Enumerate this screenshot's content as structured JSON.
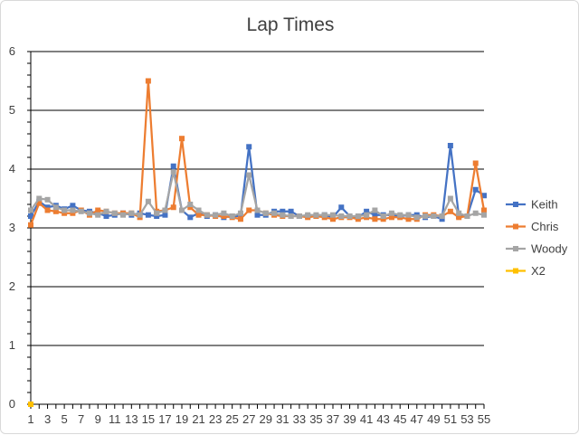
{
  "chart_data": {
    "type": "line",
    "title": "Lap Times",
    "xlabel": "",
    "ylabel": "",
    "ylim": [
      0,
      6
    ],
    "y_ticks": [
      0,
      1,
      2,
      3,
      4,
      5,
      6
    ],
    "x_range": [
      1,
      55
    ],
    "x_tick_labels": [
      1,
      3,
      5,
      7,
      9,
      11,
      13,
      15,
      17,
      19,
      21,
      23,
      25,
      27,
      29,
      31,
      33,
      35,
      37,
      39,
      41,
      43,
      45,
      47,
      49,
      51,
      53,
      55
    ],
    "grid": "horizontal major gridlines",
    "legend_position": "right",
    "series": [
      {
        "name": "Keith",
        "color": "#4472C4",
        "x": [
          1,
          2,
          3,
          4,
          5,
          6,
          7,
          8,
          9,
          10,
          11,
          12,
          13,
          14,
          15,
          16,
          17,
          18,
          19,
          20,
          21,
          22,
          23,
          24,
          25,
          26,
          27,
          28,
          29,
          30,
          31,
          32,
          33,
          34,
          35,
          36,
          37,
          38,
          39,
          40,
          41,
          42,
          43,
          44,
          45,
          46,
          47,
          48,
          49,
          50,
          51,
          52,
          53,
          54,
          55
        ],
        "values": [
          3.2,
          3.45,
          3.35,
          3.38,
          3.32,
          3.38,
          3.3,
          3.28,
          3.25,
          3.2,
          3.22,
          3.25,
          3.22,
          3.25,
          3.22,
          3.2,
          3.22,
          4.05,
          3.3,
          3.18,
          3.25,
          3.2,
          3.22,
          3.18,
          3.2,
          3.2,
          4.38,
          3.22,
          3.22,
          3.28,
          3.28,
          3.28,
          3.2,
          3.2,
          3.2,
          3.22,
          3.18,
          3.35,
          3.2,
          3.18,
          3.28,
          3.22,
          3.22,
          3.22,
          3.2,
          3.22,
          3.22,
          3.18,
          3.2,
          3.15,
          4.4,
          3.2,
          3.2,
          3.65,
          3.55
        ]
      },
      {
        "name": "Chris",
        "color": "#ED7D31",
        "x": [
          1,
          2,
          3,
          4,
          5,
          6,
          7,
          8,
          9,
          10,
          11,
          12,
          13,
          14,
          15,
          16,
          17,
          18,
          19,
          20,
          21,
          22,
          23,
          24,
          25,
          26,
          27,
          28,
          29,
          30,
          31,
          32,
          33,
          34,
          35,
          36,
          37,
          38,
          39,
          40,
          41,
          42,
          43,
          44,
          45,
          46,
          47,
          48,
          49,
          50,
          51,
          52,
          53,
          54,
          55
        ],
        "values": [
          3.05,
          3.42,
          3.3,
          3.28,
          3.25,
          3.25,
          3.3,
          3.22,
          3.3,
          3.28,
          3.25,
          3.25,
          3.25,
          3.18,
          5.5,
          3.28,
          3.3,
          3.35,
          4.52,
          3.35,
          3.22,
          3.22,
          3.2,
          3.2,
          3.18,
          3.15,
          3.3,
          3.3,
          3.25,
          3.22,
          3.2,
          3.2,
          3.2,
          3.18,
          3.2,
          3.18,
          3.15,
          3.18,
          3.18,
          3.15,
          3.18,
          3.15,
          3.15,
          3.18,
          3.18,
          3.15,
          3.15,
          3.22,
          3.22,
          3.2,
          3.28,
          3.18,
          3.2,
          4.1,
          3.3
        ]
      },
      {
        "name": "Woody",
        "color": "#A5A5A5",
        "x": [
          1,
          2,
          3,
          4,
          5,
          6,
          7,
          8,
          9,
          10,
          11,
          12,
          13,
          14,
          15,
          16,
          17,
          18,
          19,
          20,
          21,
          22,
          23,
          24,
          25,
          26,
          27,
          28,
          29,
          30,
          31,
          32,
          33,
          34,
          35,
          36,
          37,
          38,
          39,
          40,
          41,
          42,
          43,
          44,
          45,
          46,
          47,
          48,
          49,
          50,
          51,
          52,
          53,
          54,
          55
        ],
        "values": [
          3.3,
          3.5,
          3.48,
          3.35,
          3.3,
          3.3,
          3.28,
          3.25,
          3.22,
          3.28,
          3.25,
          3.22,
          3.25,
          3.22,
          3.45,
          3.25,
          3.3,
          3.95,
          3.3,
          3.4,
          3.3,
          3.22,
          3.22,
          3.25,
          3.2,
          3.25,
          3.9,
          3.3,
          3.25,
          3.25,
          3.22,
          3.2,
          3.2,
          3.22,
          3.22,
          3.22,
          3.22,
          3.2,
          3.2,
          3.2,
          3.22,
          3.3,
          3.2,
          3.25,
          3.22,
          3.22,
          3.18,
          3.2,
          3.2,
          3.2,
          3.5,
          3.25,
          3.2,
          3.25,
          3.22
        ]
      },
      {
        "name": "X2",
        "color": "#FFC000",
        "x": [
          1
        ],
        "values": [
          0
        ]
      }
    ]
  }
}
